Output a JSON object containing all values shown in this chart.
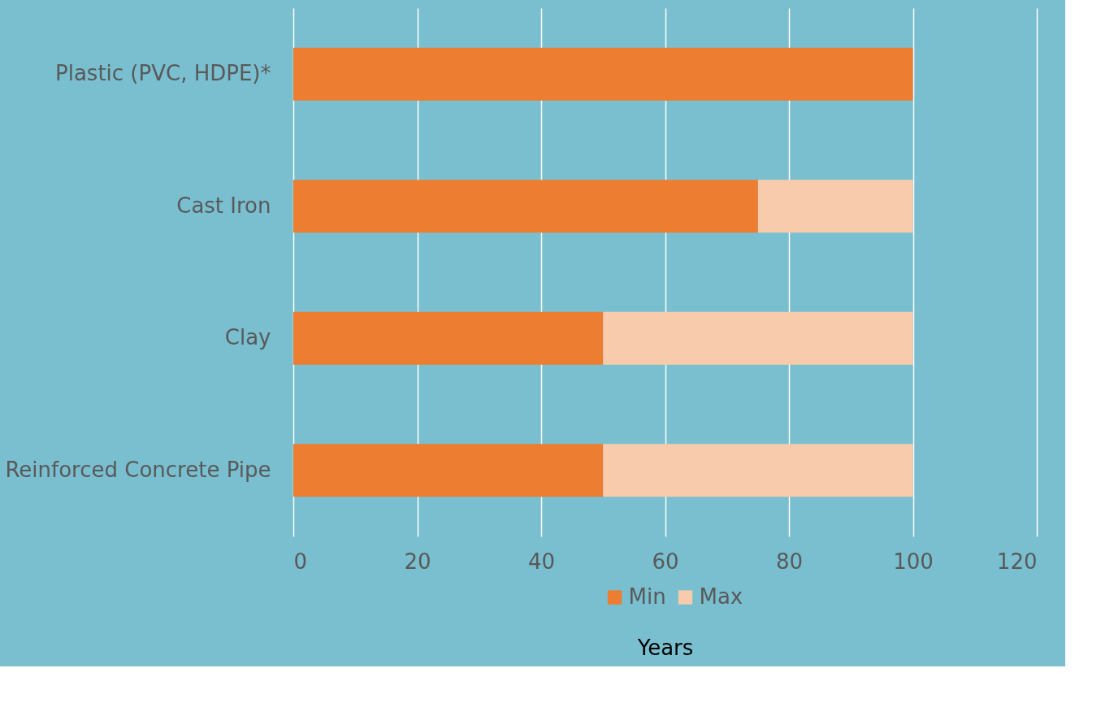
{
  "chart_data": {
    "type": "bar",
    "orientation": "horizontal",
    "stacked": true,
    "xlabel": "Years",
    "categories": [
      "Plastic (PVC, HDPE)*",
      "Cast Iron",
      "Clay",
      "Reinforced Concrete Pipe"
    ],
    "series": [
      {
        "name": "Min",
        "color": "#ed7d31",
        "values": [
          100,
          75,
          50,
          50
        ]
      },
      {
        "name": "Max",
        "color": "#f8cbad",
        "values": [
          null,
          25,
          50,
          50
        ]
      }
    ],
    "xlim": [
      0,
      120
    ],
    "xticks": [
      0,
      20,
      40,
      60,
      80,
      100,
      120
    ],
    "grid": "x",
    "legend": "bottom"
  }
}
